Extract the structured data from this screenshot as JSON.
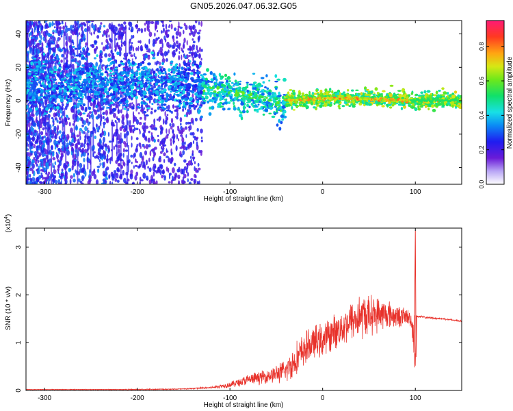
{
  "title": "GN05.2026.047.06.32.G05",
  "colors": {
    "signal": "#e8322b",
    "axis": "#000000",
    "background": "#ffffff"
  },
  "chart_data": [
    {
      "type": "heatmap",
      "title": "GN05.2026.047.06.32.G05",
      "xlabel": "Height of straight line (km)",
      "ylabel": "Frequency (Hz)",
      "xlim": [
        -320,
        150
      ],
      "ylim": [
        -50,
        48
      ],
      "x_ticks": [
        -300,
        -200,
        -100,
        0,
        100
      ],
      "x_tick_labels": [
        "-300",
        "-200",
        "-100",
        "0",
        "100"
      ],
      "y_ticks": [
        -40,
        -20,
        0,
        20,
        40
      ],
      "y_tick_labels": [
        "-40",
        "-20",
        "0",
        "20",
        "40"
      ],
      "colorbar": {
        "label": "Normalized spectral amplitude",
        "range": [
          0,
          0.95
        ],
        "ticks": [
          0,
          0.2,
          0.4,
          0.6,
          0.8
        ],
        "tick_labels": [
          "0.0",
          "0.2",
          "0.4",
          "0.6",
          "0.8"
        ]
      },
      "ridge": {
        "description_points_x": [
          -320,
          -250,
          -200,
          -150,
          -120,
          -100,
          -80,
          -60,
          -50,
          -45,
          -40,
          0,
          50,
          100,
          150
        ],
        "description_points_y": [
          10,
          11,
          10,
          9,
          7,
          5,
          3,
          1,
          -1,
          -4,
          0,
          1.5,
          1,
          0,
          0
        ]
      }
    },
    {
      "type": "line",
      "xlabel": "Height of straight line (km)",
      "ylabel": "SNR (10 * v/v)",
      "y_scale_label_base": "(x10",
      "y_scale_label_exp": "4",
      "y_scale_label_close": ")",
      "xlim": [
        -320,
        150
      ],
      "ylim": [
        0,
        3.4
      ],
      "x_ticks": [
        -300,
        -200,
        -100,
        0,
        100
      ],
      "x_tick_labels": [
        "-300",
        "-200",
        "-100",
        "0",
        "100"
      ],
      "y_ticks": [
        0,
        1,
        2,
        3
      ],
      "y_tick_labels": [
        "0",
        "1",
        "2",
        "3"
      ],
      "series": [
        {
          "name": "SNR",
          "x": [
            -320,
            -250,
            -200,
            -150,
            -120,
            -100,
            -80,
            -60,
            -40,
            -30,
            -20,
            -10,
            0,
            10,
            20,
            30,
            40,
            50,
            60,
            70,
            80,
            90,
            95,
            98,
            99,
            100,
            101,
            103,
            110,
            130,
            150
          ],
          "mean": [
            0.02,
            0.02,
            0.02,
            0.03,
            0.06,
            0.12,
            0.22,
            0.3,
            0.4,
            0.62,
            0.85,
            1.0,
            1.05,
            1.2,
            1.3,
            1.45,
            1.55,
            1.58,
            1.6,
            1.6,
            1.55,
            1.55,
            1.5,
            1.2,
            1.0,
            0.7,
            1.55,
            1.55,
            1.53,
            1.5,
            1.45
          ],
          "spread": [
            0.005,
            0.005,
            0.008,
            0.01,
            0.02,
            0.05,
            0.1,
            0.12,
            0.2,
            0.3,
            0.3,
            0.28,
            0.3,
            0.3,
            0.3,
            0.35,
            0.4,
            0.35,
            0.3,
            0.25,
            0.2,
            0.15,
            0.15,
            0.3,
            0.5,
            0.3,
            0.02,
            0.02,
            0.02,
            0.015,
            0.015
          ],
          "spike": {
            "x": 100,
            "y": 3.35
          }
        }
      ]
    }
  ]
}
